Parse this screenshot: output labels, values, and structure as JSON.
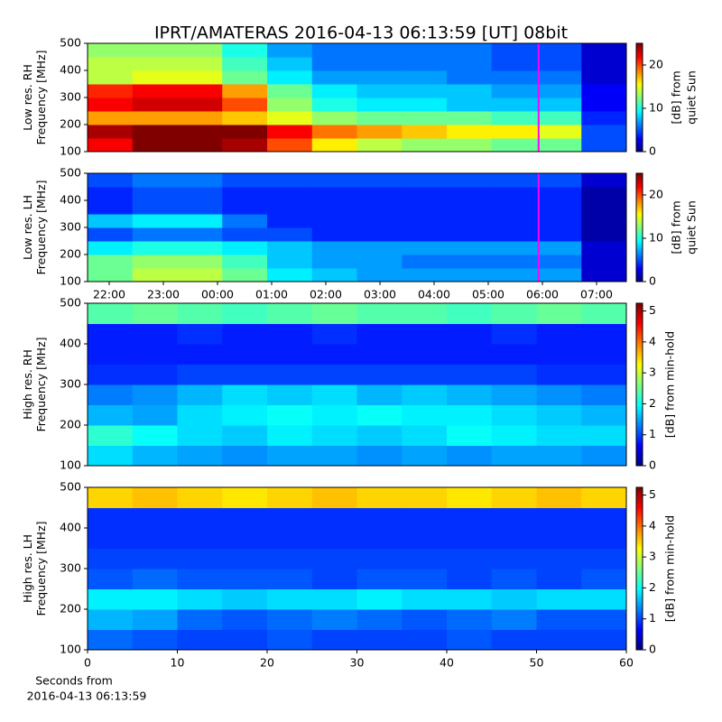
{
  "title": "IPRT/AMATERAS 2016-04-13 06:13:59 [UT]   08bit",
  "chart_data": [
    {
      "type": "heatmap",
      "ylabel": [
        "Low res. RH",
        "Frequency [MHz]"
      ],
      "zlabel": [
        "[dB] from",
        "quiet Sun"
      ],
      "xlim": [
        21.6,
        31.55
      ],
      "ylim": [
        100,
        500
      ],
      "yticks": [
        100,
        200,
        300,
        400,
        500
      ],
      "zlim": [
        0,
        25
      ],
      "zticks": [
        0,
        10,
        20
      ],
      "marker_x": 29.93,
      "marker_color": "#ff00ff",
      "values": [
        [
          22,
          25,
          25,
          24,
          20,
          16,
          14,
          13,
          13,
          12,
          12,
          5
        ],
        [
          24,
          25,
          25,
          25,
          22,
          19,
          18,
          17,
          16,
          16,
          15,
          5
        ],
        [
          18,
          18,
          18,
          17,
          15,
          13,
          12,
          12,
          12,
          11,
          11,
          4
        ],
        [
          22,
          23,
          23,
          20,
          13,
          10,
          9,
          9,
          8,
          8,
          8,
          3
        ],
        [
          21,
          22,
          22,
          18,
          12,
          9,
          8,
          8,
          8,
          7,
          7,
          3
        ],
        [
          14,
          15,
          15,
          12,
          9,
          7,
          7,
          7,
          6,
          6,
          6,
          2
        ],
        [
          14,
          14,
          14,
          11,
          8,
          6,
          6,
          6,
          6,
          5,
          5,
          2
        ],
        [
          13,
          13,
          13,
          10,
          7,
          6,
          6,
          6,
          6,
          5,
          5,
          2
        ]
      ]
    },
    {
      "type": "heatmap",
      "ylabel": [
        "Low res. LH",
        "Frequency [MHz]"
      ],
      "zlabel": [
        "[dB] from",
        "quiet Sun"
      ],
      "xlim": [
        21.6,
        31.55
      ],
      "ylim": [
        100,
        500
      ],
      "yticks": [
        100,
        200,
        300,
        400,
        500
      ],
      "zlim": [
        0,
        25
      ],
      "zticks": [
        0,
        10,
        20
      ],
      "xticks": [
        {
          "value": 22,
          "label": "22:00"
        },
        {
          "value": 23,
          "label": "23:00"
        },
        {
          "value": 24,
          "label": "00:00"
        },
        {
          "value": 25,
          "label": "01:00"
        },
        {
          "value": 26,
          "label": "02:00"
        },
        {
          "value": 27,
          "label": "03:00"
        },
        {
          "value": 28,
          "label": "04:00"
        },
        {
          "value": 29,
          "label": "05:00"
        },
        {
          "value": 30,
          "label": "06:00"
        },
        {
          "value": 31,
          "label": "07:00"
        }
      ],
      "marker_x": 29.93,
      "marker_color": "#ff00ff",
      "values": [
        [
          12,
          14,
          14,
          12,
          9,
          8,
          7,
          7,
          7,
          7,
          7,
          2
        ],
        [
          12,
          13,
          13,
          11,
          8,
          7,
          7,
          6,
          6,
          6,
          6,
          2
        ],
        [
          9,
          10,
          10,
          9,
          8,
          7,
          7,
          7,
          7,
          7,
          7,
          2
        ],
        [
          5,
          6,
          6,
          5,
          5,
          4,
          4,
          4,
          4,
          4,
          4,
          1
        ],
        [
          8,
          9,
          9,
          6,
          4,
          4,
          4,
          4,
          4,
          4,
          4,
          1
        ],
        [
          4,
          5,
          5,
          4,
          4,
          4,
          4,
          4,
          4,
          4,
          4,
          1
        ],
        [
          4,
          5,
          5,
          4,
          4,
          4,
          4,
          4,
          4,
          4,
          4,
          1
        ],
        [
          5,
          6,
          6,
          5,
          5,
          5,
          5,
          5,
          5,
          5,
          5,
          2
        ]
      ]
    },
    {
      "type": "heatmap",
      "ylabel": [
        "High res. RH",
        "Frequency [MHz]"
      ],
      "zlabel": [
        "[dB] from min-hold"
      ],
      "xlim": [
        0,
        60
      ],
      "ylim": [
        100,
        500
      ],
      "yticks": [
        100,
        200,
        300,
        400,
        500
      ],
      "zlim": [
        0,
        5.25
      ],
      "zticks": [
        0,
        1,
        2,
        3,
        4,
        5
      ],
      "values": [
        [
          1.8,
          1.6,
          1.5,
          1.4,
          1.5,
          1.5,
          1.4,
          1.5,
          1.4,
          1.5,
          1.5,
          1.4
        ],
        [
          2.2,
          2.0,
          1.8,
          1.7,
          1.9,
          1.8,
          1.7,
          1.8,
          2.0,
          1.9,
          1.8,
          1.8
        ],
        [
          1.6,
          1.5,
          1.8,
          1.9,
          2.0,
          1.9,
          2.0,
          1.9,
          1.9,
          1.8,
          1.7,
          1.6
        ],
        [
          1.3,
          1.4,
          1.6,
          1.8,
          1.7,
          1.8,
          1.6,
          1.7,
          1.6,
          1.5,
          1.4,
          1.3
        ],
        [
          0.9,
          0.9,
          1.0,
          1.0,
          1.0,
          1.0,
          1.0,
          1.0,
          1.0,
          1.0,
          0.9,
          0.9
        ],
        [
          0.8,
          0.8,
          0.8,
          0.8,
          0.8,
          0.8,
          0.8,
          0.8,
          0.8,
          0.8,
          0.8,
          0.8
        ],
        [
          0.8,
          0.8,
          0.9,
          0.8,
          0.8,
          0.9,
          0.8,
          0.8,
          0.8,
          0.9,
          0.8,
          0.8
        ],
        [
          2.4,
          2.5,
          2.4,
          2.3,
          2.4,
          2.5,
          2.4,
          2.4,
          2.3,
          2.4,
          2.5,
          2.4
        ]
      ]
    },
    {
      "type": "heatmap",
      "ylabel": [
        "High res. LH",
        "Frequency [MHz]"
      ],
      "zlabel": [
        "[dB] from min-hold"
      ],
      "xlabel": [
        "Seconds from",
        "2016-04-13 06:13:59"
      ],
      "xlim": [
        0,
        60
      ],
      "ylim": [
        100,
        500
      ],
      "yticks": [
        100,
        200,
        300,
        400,
        500
      ],
      "zlim": [
        0,
        5.25
      ],
      "zticks": [
        0,
        1,
        2,
        3,
        4,
        5
      ],
      "xticks": [
        0,
        10,
        20,
        30,
        40,
        50,
        60
      ],
      "values": [
        [
          1.2,
          1.1,
          1.0,
          1.0,
          1.1,
          1.0,
          1.0,
          1.0,
          1.1,
          1.0,
          1.0,
          1.0
        ],
        [
          1.6,
          1.5,
          1.2,
          1.1,
          1.2,
          1.3,
          1.2,
          1.1,
          1.2,
          1.3,
          1.1,
          1.1
        ],
        [
          1.9,
          1.9,
          1.8,
          1.7,
          1.8,
          1.8,
          1.9,
          1.8,
          1.8,
          1.7,
          1.8,
          1.8
        ],
        [
          1.1,
          1.2,
          1.1,
          1.1,
          1.1,
          1.0,
          1.1,
          1.1,
          1.0,
          1.1,
          1.0,
          1.1
        ],
        [
          1.0,
          1.0,
          1.0,
          1.0,
          1.0,
          1.0,
          1.0,
          1.0,
          1.0,
          1.0,
          1.0,
          1.0
        ],
        [
          0.9,
          0.9,
          0.9,
          0.9,
          0.9,
          0.9,
          0.9,
          0.9,
          0.9,
          0.9,
          0.9,
          0.9
        ],
        [
          0.9,
          0.9,
          0.9,
          0.9,
          0.9,
          0.9,
          0.9,
          0.9,
          0.9,
          0.9,
          0.9,
          0.9
        ],
        [
          3.5,
          3.6,
          3.5,
          3.4,
          3.5,
          3.6,
          3.5,
          3.5,
          3.4,
          3.5,
          3.6,
          3.5
        ]
      ]
    }
  ]
}
